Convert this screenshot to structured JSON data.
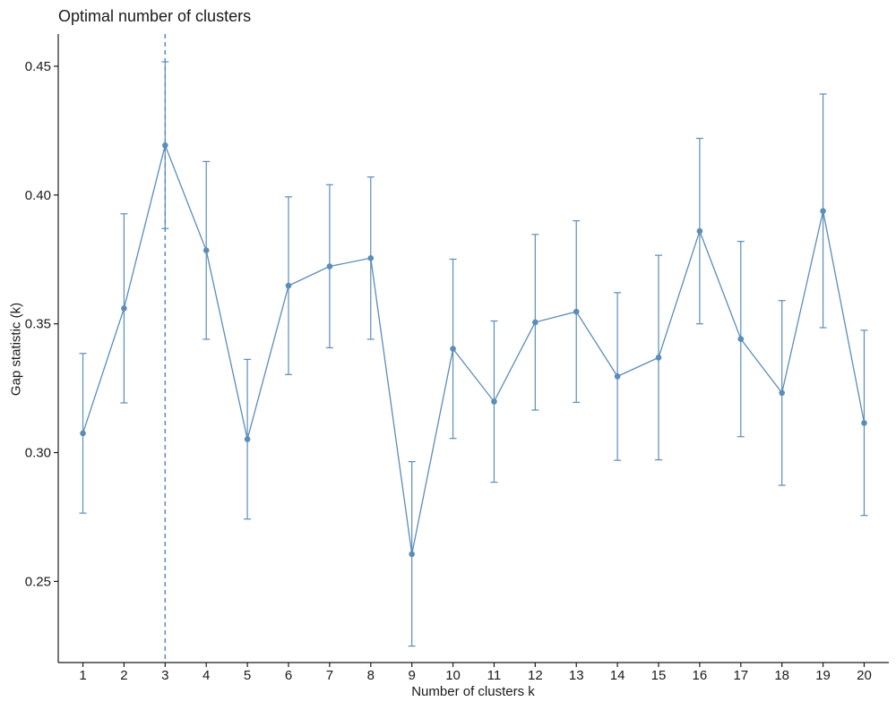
{
  "chart_data": {
    "type": "line",
    "title": "Optimal number of clusters",
    "xlabel": "Number of clusters k",
    "ylabel": "Gap statistic (k)",
    "x": [
      1,
      2,
      3,
      4,
      5,
      6,
      7,
      8,
      9,
      10,
      11,
      12,
      13,
      14,
      15,
      16,
      17,
      18,
      19,
      20
    ],
    "x_tick_labels": [
      "1",
      "2",
      "3",
      "4",
      "5",
      "6",
      "7",
      "8",
      "9",
      "10",
      "11",
      "12",
      "13",
      "14",
      "15",
      "16",
      "17",
      "18",
      "19",
      "20"
    ],
    "series": [
      {
        "values": [
          0.3075,
          0.356,
          0.4193,
          0.3785,
          0.3052,
          0.3648,
          0.3723,
          0.3755,
          0.2606,
          0.3403,
          0.3198,
          0.3506,
          0.3547,
          0.3296,
          0.3369,
          0.386,
          0.3441,
          0.3232,
          0.3938,
          0.3115
        ],
        "error_lower": [
          0.2765,
          0.3193,
          0.387,
          0.344,
          0.2742,
          0.3303,
          0.3407,
          0.344,
          0.2249,
          0.3055,
          0.2885,
          0.3165,
          0.3195,
          0.297,
          0.2972,
          0.35,
          0.3062,
          0.2873,
          0.3485,
          0.2756
        ],
        "error_upper": [
          0.3385,
          0.3927,
          0.4517,
          0.413,
          0.3362,
          0.3993,
          0.404,
          0.407,
          0.2965,
          0.3751,
          0.3511,
          0.3847,
          0.39,
          0.3621,
          0.3766,
          0.422,
          0.382,
          0.359,
          0.4392,
          0.3475
        ],
        "color": "#5b8db8"
      }
    ],
    "reference_line": {
      "x": 3,
      "style": "dashed",
      "color": "#5b8db8"
    },
    "y_ticks": [
      0.25,
      0.3,
      0.35,
      0.4,
      0.45
    ],
    "y_tick_labels": [
      "0.25",
      "0.30",
      "0.35",
      "0.40",
      "0.45"
    ],
    "ylim": [
      0.2185,
      0.4625
    ],
    "xlim": [
      0.4,
      20.6
    ],
    "grid": false,
    "axis_color": "#1a1a1a"
  }
}
